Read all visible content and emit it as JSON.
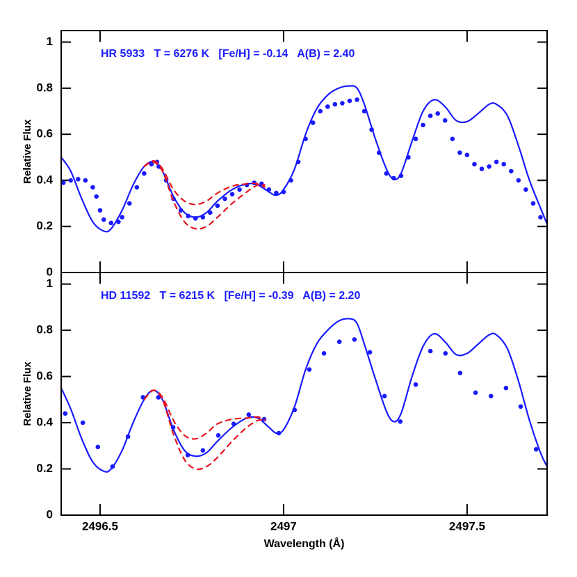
{
  "chart_data": [
    {
      "type": "scatter-line",
      "annotation": "HR 5933   T = 6276 K   [Fe/H] = -0.14   A(B) = 2.40",
      "ylabel": "Relative Flux",
      "xlim": [
        2496.394,
        2497.718
      ],
      "ylim": [
        0,
        1.05
      ],
      "xticks": [
        2496.5,
        2497,
        2497.5
      ],
      "xtick_labels": false,
      "yticks": [
        0,
        0.2,
        0.4,
        0.6,
        0.8,
        1
      ],
      "series": [
        {
          "style": "dots",
          "color": "#1a1aff",
          "x": [
            2496.4,
            2496.42,
            2496.44,
            2496.46,
            2496.48,
            2496.49,
            2496.5,
            2496.51,
            2496.53,
            2496.55,
            2496.56,
            2496.58,
            2496.6,
            2496.62,
            2496.64,
            2496.655,
            2496.66,
            2496.68,
            2496.7,
            2496.72,
            2496.74,
            2496.76,
            2496.78,
            2496.8,
            2496.82,
            2496.84,
            2496.86,
            2496.88,
            2496.9,
            2496.92,
            2496.94,
            2496.96,
            2496.98,
            2497.0,
            2497.02,
            2497.04,
            2497.06,
            2497.08,
            2497.1,
            2497.12,
            2497.14,
            2497.16,
            2497.18,
            2497.2,
            2497.22,
            2497.24,
            2497.26,
            2497.28,
            2497.3,
            2497.32,
            2497.34,
            2497.36,
            2497.38,
            2497.4,
            2497.42,
            2497.44,
            2497.46,
            2497.48,
            2497.5,
            2497.52,
            2497.54,
            2497.56,
            2497.58,
            2497.6,
            2497.62,
            2497.64,
            2497.66,
            2497.68,
            2497.7
          ],
          "values": [
            0.39,
            0.4,
            0.405,
            0.4,
            0.37,
            0.33,
            0.27,
            0.23,
            0.215,
            0.22,
            0.24,
            0.3,
            0.37,
            0.43,
            0.47,
            0.48,
            0.46,
            0.4,
            0.32,
            0.27,
            0.245,
            0.235,
            0.24,
            0.26,
            0.29,
            0.32,
            0.34,
            0.36,
            0.38,
            0.39,
            0.385,
            0.36,
            0.345,
            0.35,
            0.4,
            0.48,
            0.58,
            0.65,
            0.7,
            0.72,
            0.73,
            0.735,
            0.745,
            0.75,
            0.7,
            0.62,
            0.52,
            0.43,
            0.41,
            0.42,
            0.5,
            0.58,
            0.64,
            0.68,
            0.69,
            0.66,
            0.58,
            0.52,
            0.51,
            0.47,
            0.45,
            0.46,
            0.48,
            0.47,
            0.44,
            0.4,
            0.36,
            0.3,
            0.24
          ]
        },
        {
          "style": "solid",
          "color": "#1a1aff",
          "x": [
            2496.394,
            2496.42,
            2496.45,
            2496.48,
            2496.51,
            2496.53,
            2496.56,
            2496.59,
            2496.62,
            2496.645,
            2496.67,
            2496.7,
            2496.73,
            2496.76,
            2496.79,
            2496.82,
            2496.86,
            2496.9,
            2496.93,
            2496.96,
            2496.98,
            2497.0,
            2497.03,
            2497.06,
            2497.09,
            2497.12,
            2497.15,
            2497.18,
            2497.2,
            2497.22,
            2497.25,
            2497.28,
            2497.3,
            2497.32,
            2497.35,
            2497.38,
            2497.41,
            2497.44,
            2497.47,
            2497.5,
            2497.53,
            2497.56,
            2497.58,
            2497.61,
            2497.64,
            2497.67,
            2497.7,
            2497.718
          ],
          "values": [
            0.5,
            0.44,
            0.32,
            0.22,
            0.18,
            0.19,
            0.27,
            0.38,
            0.46,
            0.48,
            0.44,
            0.33,
            0.26,
            0.24,
            0.26,
            0.31,
            0.36,
            0.385,
            0.38,
            0.35,
            0.335,
            0.36,
            0.45,
            0.6,
            0.71,
            0.77,
            0.8,
            0.81,
            0.8,
            0.73,
            0.58,
            0.45,
            0.405,
            0.43,
            0.57,
            0.7,
            0.75,
            0.72,
            0.66,
            0.655,
            0.69,
            0.73,
            0.73,
            0.68,
            0.55,
            0.4,
            0.28,
            0.21
          ]
        },
        {
          "style": "dashed",
          "color": "#e8141e",
          "x": [
            2496.62,
            2496.645,
            2496.67,
            2496.7,
            2496.73,
            2496.76,
            2496.79,
            2496.82,
            2496.86,
            2496.9,
            2496.93,
            2496.95
          ],
          "values": [
            0.46,
            0.485,
            0.45,
            0.36,
            0.31,
            0.295,
            0.31,
            0.345,
            0.375,
            0.385,
            0.385,
            0.37
          ]
        },
        {
          "style": "dashed",
          "color": "#e8141e",
          "x": [
            2496.62,
            2496.645,
            2496.67,
            2496.7,
            2496.73,
            2496.76,
            2496.79,
            2496.82,
            2496.86,
            2496.9,
            2496.93,
            2496.95
          ],
          "values": [
            0.46,
            0.48,
            0.44,
            0.31,
            0.22,
            0.19,
            0.2,
            0.24,
            0.3,
            0.35,
            0.38,
            0.38
          ]
        }
      ]
    },
    {
      "type": "scatter-line",
      "annotation": "HD 11592   T = 6215 K   [Fe/H] = -0.39   A(B) = 2.20",
      "ylabel": "Relative Flux",
      "xlabel": "Wavelength (Å)",
      "xlim": [
        2496.394,
        2497.718
      ],
      "ylim": [
        0,
        1.05
      ],
      "xticks": [
        2496.5,
        2497,
        2497.5
      ],
      "xtick_labels": true,
      "yticks": [
        0,
        0.2,
        0.4,
        0.6,
        0.8,
        1
      ],
      "series": [
        {
          "style": "dots",
          "color": "#1a1aff",
          "x": [
            2496.405,
            2496.453,
            2496.494,
            2496.534,
            2496.576,
            2496.617,
            2496.659,
            2496.699,
            2496.739,
            2496.78,
            2496.822,
            2496.864,
            2496.905,
            2496.947,
            2496.987,
            2497.03,
            2497.07,
            2497.11,
            2497.152,
            2497.193,
            2497.235,
            2497.275,
            2497.318,
            2497.36,
            2497.4,
            2497.441,
            2497.481,
            2497.523,
            2497.565,
            2497.606,
            2497.646,
            2497.688
          ],
          "values": [
            0.44,
            0.4,
            0.295,
            0.21,
            0.34,
            0.51,
            0.51,
            0.38,
            0.26,
            0.28,
            0.345,
            0.395,
            0.435,
            0.415,
            0.355,
            0.455,
            0.63,
            0.7,
            0.75,
            0.76,
            0.705,
            0.515,
            0.405,
            0.565,
            0.71,
            0.7,
            0.615,
            0.53,
            0.515,
            0.55,
            0.47,
            0.285
          ]
        },
        {
          "style": "solid",
          "color": "#1a1aff",
          "x": [
            2496.394,
            2496.42,
            2496.45,
            2496.48,
            2496.51,
            2496.53,
            2496.56,
            2496.59,
            2496.62,
            2496.645,
            2496.67,
            2496.7,
            2496.73,
            2496.76,
            2496.79,
            2496.82,
            2496.86,
            2496.9,
            2496.93,
            2496.96,
            2496.98,
            2497.0,
            2497.03,
            2497.06,
            2497.09,
            2497.12,
            2497.15,
            2497.18,
            2497.2,
            2497.22,
            2497.25,
            2497.28,
            2497.3,
            2497.32,
            2497.35,
            2497.38,
            2497.41,
            2497.44,
            2497.47,
            2497.5,
            2497.53,
            2497.56,
            2497.58,
            2497.61,
            2497.64,
            2497.67,
            2497.7,
            2497.718
          ],
          "values": [
            0.55,
            0.46,
            0.33,
            0.23,
            0.19,
            0.2,
            0.28,
            0.4,
            0.5,
            0.54,
            0.5,
            0.37,
            0.28,
            0.255,
            0.27,
            0.32,
            0.38,
            0.42,
            0.42,
            0.38,
            0.355,
            0.37,
            0.47,
            0.63,
            0.74,
            0.8,
            0.84,
            0.85,
            0.83,
            0.74,
            0.59,
            0.45,
            0.405,
            0.44,
            0.6,
            0.73,
            0.785,
            0.75,
            0.695,
            0.7,
            0.74,
            0.78,
            0.78,
            0.72,
            0.58,
            0.41,
            0.27,
            0.21
          ]
        },
        {
          "style": "dashed",
          "color": "#e8141e",
          "x": [
            2496.62,
            2496.645,
            2496.67,
            2496.7,
            2496.73,
            2496.76,
            2496.79,
            2496.82,
            2496.86,
            2496.9,
            2496.93,
            2496.95
          ],
          "values": [
            0.5,
            0.54,
            0.51,
            0.41,
            0.345,
            0.33,
            0.355,
            0.395,
            0.415,
            0.42,
            0.425,
            0.41
          ]
        },
        {
          "style": "dashed",
          "color": "#e8141e",
          "x": [
            2496.62,
            2496.645,
            2496.67,
            2496.7,
            2496.73,
            2496.76,
            2496.79,
            2496.82,
            2496.86,
            2496.9,
            2496.93,
            2496.95
          ],
          "values": [
            0.5,
            0.54,
            0.5,
            0.35,
            0.24,
            0.2,
            0.21,
            0.25,
            0.32,
            0.38,
            0.41,
            0.41
          ]
        }
      ]
    }
  ]
}
